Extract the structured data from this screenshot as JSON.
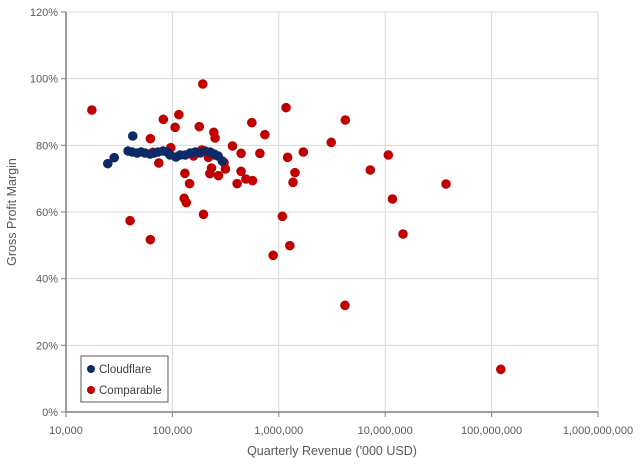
{
  "chart_data": {
    "type": "scatter",
    "xlabel": "Quarterly Revenue ('000 USD)",
    "ylabel": "Gross Profit Margin",
    "x_scale": "log",
    "xlim": [
      10000,
      1000000000
    ],
    "ylim": [
      0,
      120
    ],
    "x_ticks": [
      10000,
      100000,
      1000000,
      10000000,
      100000000,
      1000000000
    ],
    "x_tick_labels": [
      "10,000",
      "100,000",
      "1,000,000",
      "10,000,000",
      "100,000,000",
      "1,000,000,000"
    ],
    "y_ticks": [
      0,
      20,
      40,
      60,
      80,
      100,
      120
    ],
    "y_tick_labels": [
      "0%",
      "20%",
      "40%",
      "60%",
      "80%",
      "100%",
      "120%"
    ],
    "grid": true,
    "legend_position": "bottom-left",
    "series": [
      {
        "name": "Cloudflare",
        "color": "#0e2a66",
        "points": [
          [
            24700,
            74.5
          ],
          [
            28400,
            76.3
          ],
          [
            42400,
            82.8
          ],
          [
            38300,
            78.3
          ],
          [
            41800,
            78.0
          ],
          [
            46600,
            77.7
          ],
          [
            50800,
            78.0
          ],
          [
            55400,
            77.7
          ],
          [
            61700,
            77.4
          ],
          [
            67300,
            77.7
          ],
          [
            73300,
            78.0
          ],
          [
            81700,
            78.3
          ],
          [
            89100,
            78.0
          ],
          [
            95100,
            77.1
          ],
          [
            108000,
            76.5
          ],
          [
            118000,
            77.1
          ],
          [
            132000,
            77.1
          ],
          [
            147000,
            77.7
          ],
          [
            164000,
            78.0
          ],
          [
            182000,
            77.7
          ],
          [
            203000,
            78.3
          ],
          [
            226000,
            78.0
          ],
          [
            247000,
            77.4
          ],
          [
            269000,
            76.8
          ],
          [
            294000,
            75.3
          ]
        ]
      },
      {
        "name": "Comparable",
        "color": "#c00000",
        "points": [
          [
            17500,
            90.6
          ],
          [
            193000,
            98.4
          ],
          [
            82200,
            87.8
          ],
          [
            115000,
            89.2
          ],
          [
            106000,
            85.4
          ],
          [
            179000,
            85.6
          ],
          [
            245000,
            83.9
          ],
          [
            252000,
            82.2
          ],
          [
            62100,
            82.0
          ],
          [
            96600,
            79.3
          ],
          [
            189000,
            78.6
          ],
          [
            65500,
            77.9
          ],
          [
            74500,
            74.7
          ],
          [
            158000,
            76.8
          ],
          [
            218000,
            76.4
          ],
          [
            247000,
            77.1
          ],
          [
            306000,
            74.8
          ],
          [
            315000,
            72.9
          ],
          [
            233000,
            73.2
          ],
          [
            225000,
            71.5
          ],
          [
            271000,
            70.9
          ],
          [
            367000,
            79.8
          ],
          [
            442000,
            77.6
          ],
          [
            558000,
            86.8
          ],
          [
            740000,
            83.2
          ],
          [
            664000,
            77.6
          ],
          [
            442000,
            72.2
          ],
          [
            490000,
            69.9
          ],
          [
            566000,
            69.4
          ],
          [
            406000,
            68.5
          ],
          [
            131000,
            71.6
          ],
          [
            145000,
            68.5
          ],
          [
            129000,
            64.1
          ],
          [
            135000,
            62.8
          ],
          [
            196000,
            59.3
          ],
          [
            40000,
            57.4
          ],
          [
            62100,
            51.7
          ],
          [
            1170000,
            91.3
          ],
          [
            1210000,
            76.4
          ],
          [
            1700000,
            78.0
          ],
          [
            1420000,
            71.8
          ],
          [
            1360000,
            68.9
          ],
          [
            1080000,
            58.7
          ],
          [
            1270000,
            49.9
          ],
          [
            885000,
            47.0
          ],
          [
            4220000,
            87.6
          ],
          [
            3110000,
            80.9
          ],
          [
            10700000,
            77.1
          ],
          [
            7240000,
            72.6
          ],
          [
            37300000,
            68.4
          ],
          [
            11700000,
            63.9
          ],
          [
            14700000,
            53.4
          ],
          [
            4190000,
            32.0
          ],
          [
            122000000,
            12.8
          ]
        ]
      }
    ]
  }
}
